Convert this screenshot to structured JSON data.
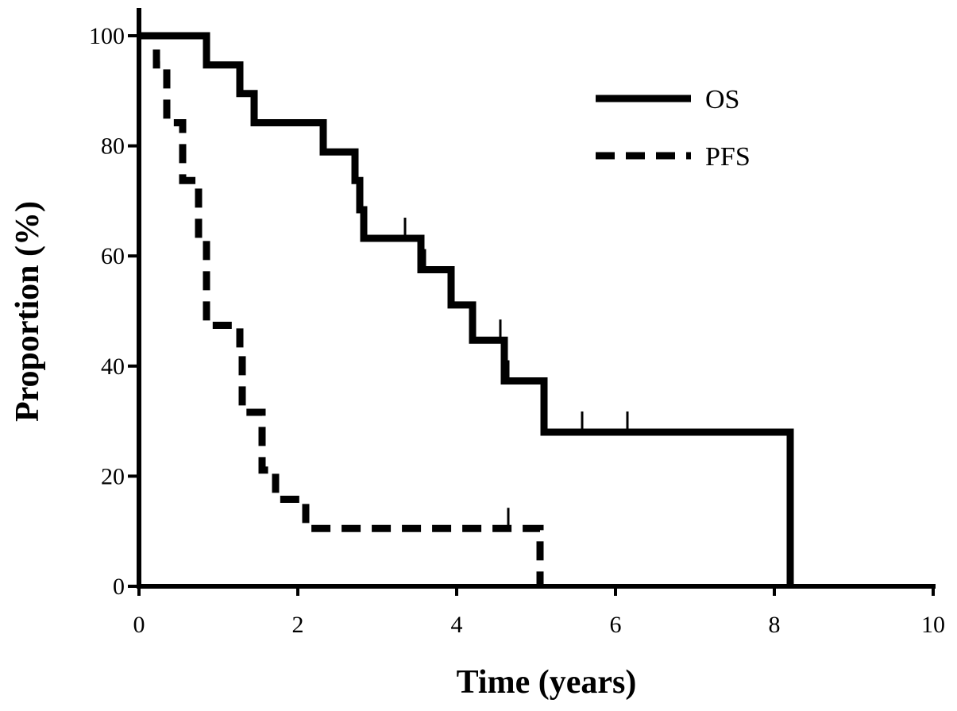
{
  "chart_data": {
    "type": "line",
    "subtype": "kaplan-meier step",
    "title": "",
    "xlabel": "Time (years)",
    "ylabel": "Proportion (%)",
    "xlim": [
      0,
      10
    ],
    "ylim": [
      0,
      100
    ],
    "xticks": [
      "0",
      "2",
      "4",
      "6",
      "8",
      "10"
    ],
    "yticks": [
      "0",
      "20",
      "40",
      "60",
      "80",
      "100"
    ],
    "grid": false,
    "legend_position": "top-right",
    "series": [
      {
        "name": "OS",
        "style": "solid",
        "color": "#000000",
        "steps": [
          {
            "x": 0,
            "y": 100
          },
          {
            "x": 0.85,
            "y": 94.7
          },
          {
            "x": 1.27,
            "y": 89.5
          },
          {
            "x": 1.45,
            "y": 84.2
          },
          {
            "x": 2.32,
            "y": 78.9
          },
          {
            "x": 2.72,
            "y": 73.7
          },
          {
            "x": 2.78,
            "y": 68.4
          },
          {
            "x": 2.83,
            "y": 63.2
          },
          {
            "x": 3.55,
            "y": 57.5
          },
          {
            "x": 3.93,
            "y": 51.1
          },
          {
            "x": 4.2,
            "y": 44.7
          },
          {
            "x": 4.6,
            "y": 37.3
          },
          {
            "x": 5.1,
            "y": 28.0
          },
          {
            "x": 8.2,
            "y": 0
          }
        ],
        "censor_x": [
          3.35,
          3.6,
          4.55,
          4.65,
          5.58,
          6.15
        ],
        "end_x": 8.2
      },
      {
        "name": "PFS",
        "style": "dashed",
        "color": "#000000",
        "steps": [
          {
            "x": 0.22,
            "y": 94.7
          },
          {
            "x": 0.35,
            "y": 84.2
          },
          {
            "x": 0.55,
            "y": 73.7
          },
          {
            "x": 0.75,
            "y": 63.2
          },
          {
            "x": 0.85,
            "y": 47.4
          },
          {
            "x": 1.27,
            "y": 42.1
          },
          {
            "x": 1.3,
            "y": 31.6
          },
          {
            "x": 1.55,
            "y": 21.1
          },
          {
            "x": 1.72,
            "y": 15.8
          },
          {
            "x": 2.1,
            "y": 10.5
          },
          {
            "x": 5.05,
            "y": 0
          }
        ],
        "start": {
          "x": 0.22,
          "y": 97.5
        },
        "censor_x": [
          4.65
        ],
        "end_x": 5.05
      }
    ]
  }
}
